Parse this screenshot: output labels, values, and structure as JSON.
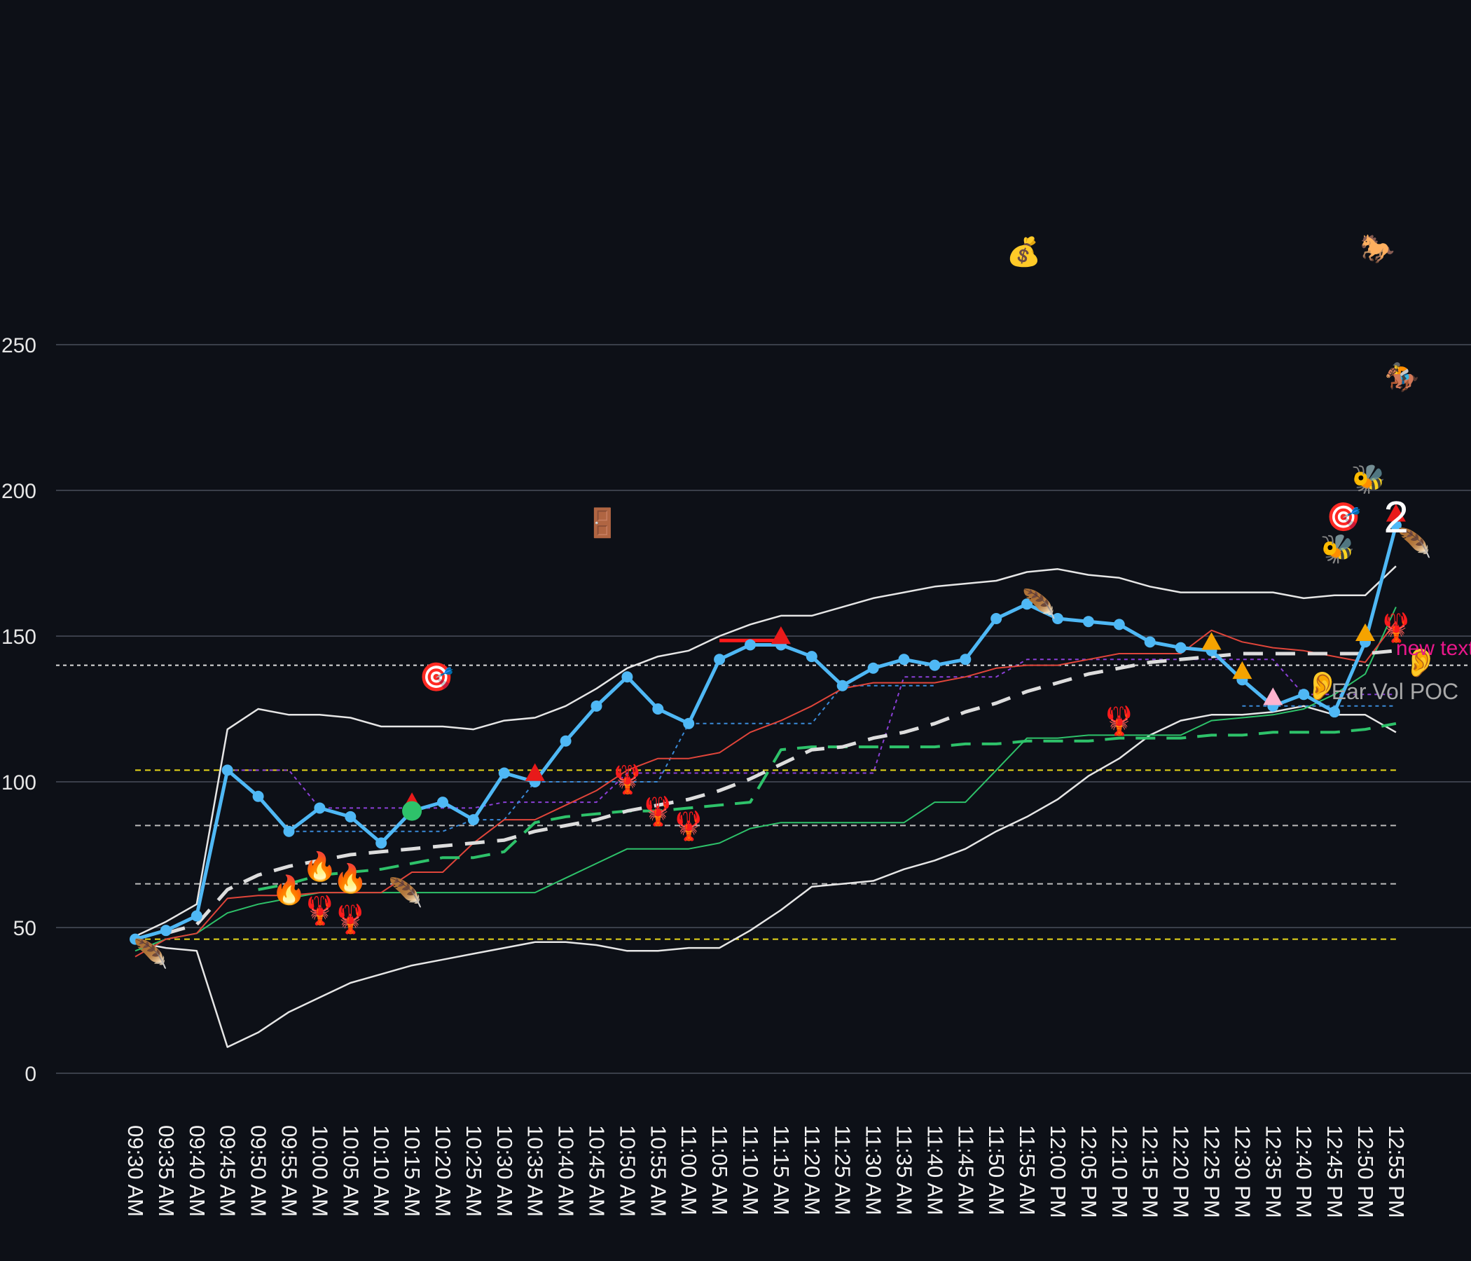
{
  "chart_data": {
    "type": "line",
    "x": [
      "09:30 AM",
      "09:35 AM",
      "09:40 AM",
      "09:45 AM",
      "09:50 AM",
      "09:55 AM",
      "10:00 AM",
      "10:05 AM",
      "10:10 AM",
      "10:15 AM",
      "10:20 AM",
      "10:25 AM",
      "10:30 AM",
      "10:35 AM",
      "10:40 AM",
      "10:45 AM",
      "10:50 AM",
      "10:55 AM",
      "11:00 AM",
      "11:05 AM",
      "11:10 AM",
      "11:15 AM",
      "11:20 AM",
      "11:25 AM",
      "11:30 AM",
      "11:35 AM",
      "11:40 AM",
      "11:45 AM",
      "11:50 AM",
      "11:55 AM",
      "12:00 PM",
      "12:05 PM",
      "12:10 PM",
      "12:15 PM",
      "12:20 PM",
      "12:25 PM",
      "12:30 PM",
      "12:35 PM",
      "12:40 PM",
      "12:45 PM",
      "12:50 PM",
      "12:55 PM"
    ],
    "yticks": [
      0,
      50,
      100,
      150,
      200,
      250
    ],
    "ylim": [
      -9,
      375
    ],
    "grid": true,
    "series": [
      {
        "role": "price",
        "color": "#4fb8f5",
        "values": [
          46,
          49,
          54,
          104,
          95,
          83,
          91,
          88,
          79,
          90,
          93,
          87,
          103,
          100,
          114,
          126,
          136,
          125,
          120,
          142,
          147,
          147,
          143,
          133,
          139,
          142,
          140,
          142,
          156,
          161,
          156,
          155,
          154,
          148,
          146,
          145,
          135,
          126,
          130,
          124,
          148,
          188
        ]
      },
      {
        "role": "upper-band",
        "color": "#e6e6e6",
        "values": [
          47,
          52,
          58,
          118,
          125,
          123,
          123,
          122,
          119,
          119,
          119,
          118,
          121,
          122,
          126,
          132,
          139,
          143,
          145,
          150,
          154,
          157,
          157,
          160,
          163,
          165,
          167,
          168,
          169,
          172,
          173,
          171,
          170,
          167,
          165,
          165,
          165,
          165,
          163,
          164,
          164,
          174
        ]
      },
      {
        "role": "lower-band",
        "color": "#e6e6e6",
        "values": [
          45,
          43,
          42,
          9,
          14,
          21,
          26,
          31,
          34,
          37,
          39,
          41,
          43,
          45,
          45,
          44,
          42,
          42,
          43,
          43,
          49,
          56,
          64,
          65,
          66,
          70,
          73,
          77,
          83,
          88,
          94,
          102,
          108,
          116,
          121,
          123,
          123,
          124,
          126,
          123,
          123,
          117
        ]
      },
      {
        "role": "red-line",
        "color": "#e0453a",
        "values": [
          40,
          46,
          48,
          60,
          61,
          61,
          62,
          62,
          62,
          69,
          69,
          79,
          87,
          87,
          92,
          97,
          104,
          108,
          108,
          110,
          117,
          121,
          126,
          132,
          134,
          134,
          134,
          136,
          139,
          140,
          140,
          142,
          144,
          144,
          144,
          152,
          148,
          146,
          145,
          143,
          141,
          155
        ]
      },
      {
        "role": "green-line",
        "color": "#2ec26a",
        "values": [
          42,
          46,
          48,
          55,
          58,
          60,
          62,
          62,
          62,
          62,
          62,
          62,
          62,
          62,
          67,
          72,
          77,
          77,
          77,
          79,
          84,
          86,
          86,
          86,
          86,
          86,
          93,
          93,
          104,
          115,
          115,
          116,
          116,
          116,
          116,
          121,
          122,
          123,
          125,
          130,
          137,
          160
        ]
      },
      {
        "role": "green-dashed",
        "color": "#2ec26a",
        "values": [
          null,
          null,
          null,
          null,
          63,
          65,
          68,
          69,
          70,
          72,
          74,
          74,
          76,
          86,
          88,
          89,
          90,
          90,
          91,
          92,
          93,
          111,
          112,
          112,
          112,
          112,
          112,
          113,
          113,
          114,
          114,
          114,
          115,
          115,
          115,
          116,
          116,
          117,
          117,
          117,
          118,
          120
        ]
      },
      {
        "role": "white-dashed",
        "color": "#dddddd",
        "values": [
          null,
          48,
          51,
          63,
          68,
          71,
          73,
          75,
          76,
          77,
          78,
          79,
          80,
          83,
          85,
          87,
          90,
          92,
          94,
          97,
          101,
          106,
          111,
          112,
          115,
          117,
          120,
          124,
          127,
          131,
          134,
          137,
          139,
          141,
          142,
          143,
          144,
          144,
          144,
          144,
          144,
          145
        ]
      },
      {
        "role": "purple-dotted",
        "color": "#8a3fd6",
        "values": [
          null,
          null,
          null,
          104,
          104,
          104,
          91,
          91,
          91,
          91,
          91,
          91,
          93,
          93,
          93,
          93,
          103,
          103,
          103,
          103,
          103,
          103,
          103,
          103,
          103,
          136,
          136,
          136,
          136,
          142,
          142,
          142,
          142,
          142,
          142,
          142,
          142,
          142,
          130,
          130,
          130,
          130
        ]
      },
      {
        "role": "blue-dotted",
        "color": "#3a8ad8",
        "values": [
          null,
          null,
          null,
          null,
          null,
          83,
          83,
          83,
          83,
          83,
          83,
          87,
          87,
          100,
          100,
          100,
          100,
          100,
          120,
          120,
          120,
          120,
          120,
          133,
          133,
          133,
          133,
          null,
          null,
          null,
          null,
          null,
          null,
          null,
          null,
          null,
          126,
          126,
          126,
          126,
          126,
          126
        ]
      }
    ],
    "reference_lines": [
      {
        "y": 140,
        "color": "#dddddd",
        "style": "dotted"
      },
      {
        "y": 104,
        "color": "#e8d81a",
        "style": "dashed"
      },
      {
        "y": 85,
        "color": "#bbbbbb",
        "style": "dashed"
      },
      {
        "y": 65,
        "color": "#bbbbbb",
        "style": "dashed"
      },
      {
        "y": 46,
        "color": "#e8d81a",
        "style": "dashed"
      }
    ],
    "segments": [
      {
        "x0": 19,
        "x1": 21,
        "y": 148.5,
        "color": "#ff1a1a"
      }
    ],
    "markers": [
      {
        "shape": "triangle",
        "i": 9,
        "y": 93,
        "color": "#e81a1a"
      },
      {
        "shape": "circle",
        "i": 9,
        "y": 90,
        "color": "#2ec26a"
      },
      {
        "shape": "triangle",
        "i": 13,
        "y": 103,
        "color": "#e81a1a"
      },
      {
        "shape": "triangle",
        "i": 21,
        "y": 150,
        "color": "#e81a1a"
      },
      {
        "shape": "triangle",
        "i": 35,
        "y": 148,
        "color": "#f5a300"
      },
      {
        "shape": "triangle",
        "i": 36,
        "y": 138,
        "color": "#f5a300"
      },
      {
        "shape": "triangle",
        "i": 37,
        "y": 129,
        "color": "#ffb3cf"
      },
      {
        "shape": "triangle",
        "i": 40,
        "y": 151,
        "color": "#f5a300"
      },
      {
        "shape": "triangle",
        "i": 41,
        "y": 192,
        "color": "#e81a1a"
      }
    ],
    "emojis": [
      {
        "char": "🪶",
        "i": 0.5,
        "y": 41
      },
      {
        "char": "🪶",
        "i": 8.8,
        "y": 62
      },
      {
        "char": "🪶",
        "i": 29.4,
        "y": 161
      },
      {
        "char": "🪶",
        "i": 41.6,
        "y": 182
      },
      {
        "char": "🔥",
        "i": 5,
        "y": 63
      },
      {
        "char": "🔥",
        "i": 6,
        "y": 71
      },
      {
        "char": "🔥",
        "i": 7,
        "y": 67
      },
      {
        "char": "🦞",
        "i": 6,
        "y": 56
      },
      {
        "char": "🦞",
        "i": 7,
        "y": 53
      },
      {
        "char": "🦞",
        "i": 16,
        "y": 101
      },
      {
        "char": "🦞",
        "i": 17,
        "y": 90
      },
      {
        "char": "🦞",
        "i": 18,
        "y": 85
      },
      {
        "char": "🦞",
        "i": 32,
        "y": 121
      },
      {
        "char": "🦞",
        "i": 41,
        "y": 153
      },
      {
        "char": "🎯",
        "i": 9.8,
        "y": 136
      },
      {
        "char": "🎯",
        "i": 39.3,
        "y": 191
      },
      {
        "char": "🚪",
        "i": 15.2,
        "y": 189
      },
      {
        "char": "💰",
        "i": 28.9,
        "y": 282
      },
      {
        "char": "🐎",
        "i": 40.4,
        "y": 283
      },
      {
        "char": "🏇",
        "i": 41.2,
        "y": 239
      },
      {
        "char": "🐝",
        "i": 40.1,
        "y": 204
      },
      {
        "char": "🐝",
        "i": 39.1,
        "y": 180
      },
      {
        "char": "👂",
        "i": 38.6,
        "y": 133
      },
      {
        "char": "👂",
        "i": 41.8,
        "y": 141
      }
    ],
    "annotations": [
      {
        "text": "2",
        "i": 40.6,
        "y": 191,
        "color": "#ffffff",
        "size": 64
      },
      {
        "text": "new text",
        "i": 41.0,
        "y": 146,
        "color": "#e8178a",
        "size": 30
      },
      {
        "text": "Ear Vol POC",
        "i": 38.9,
        "y": 131,
        "color": "#a9a9a9",
        "size": 32
      }
    ]
  }
}
